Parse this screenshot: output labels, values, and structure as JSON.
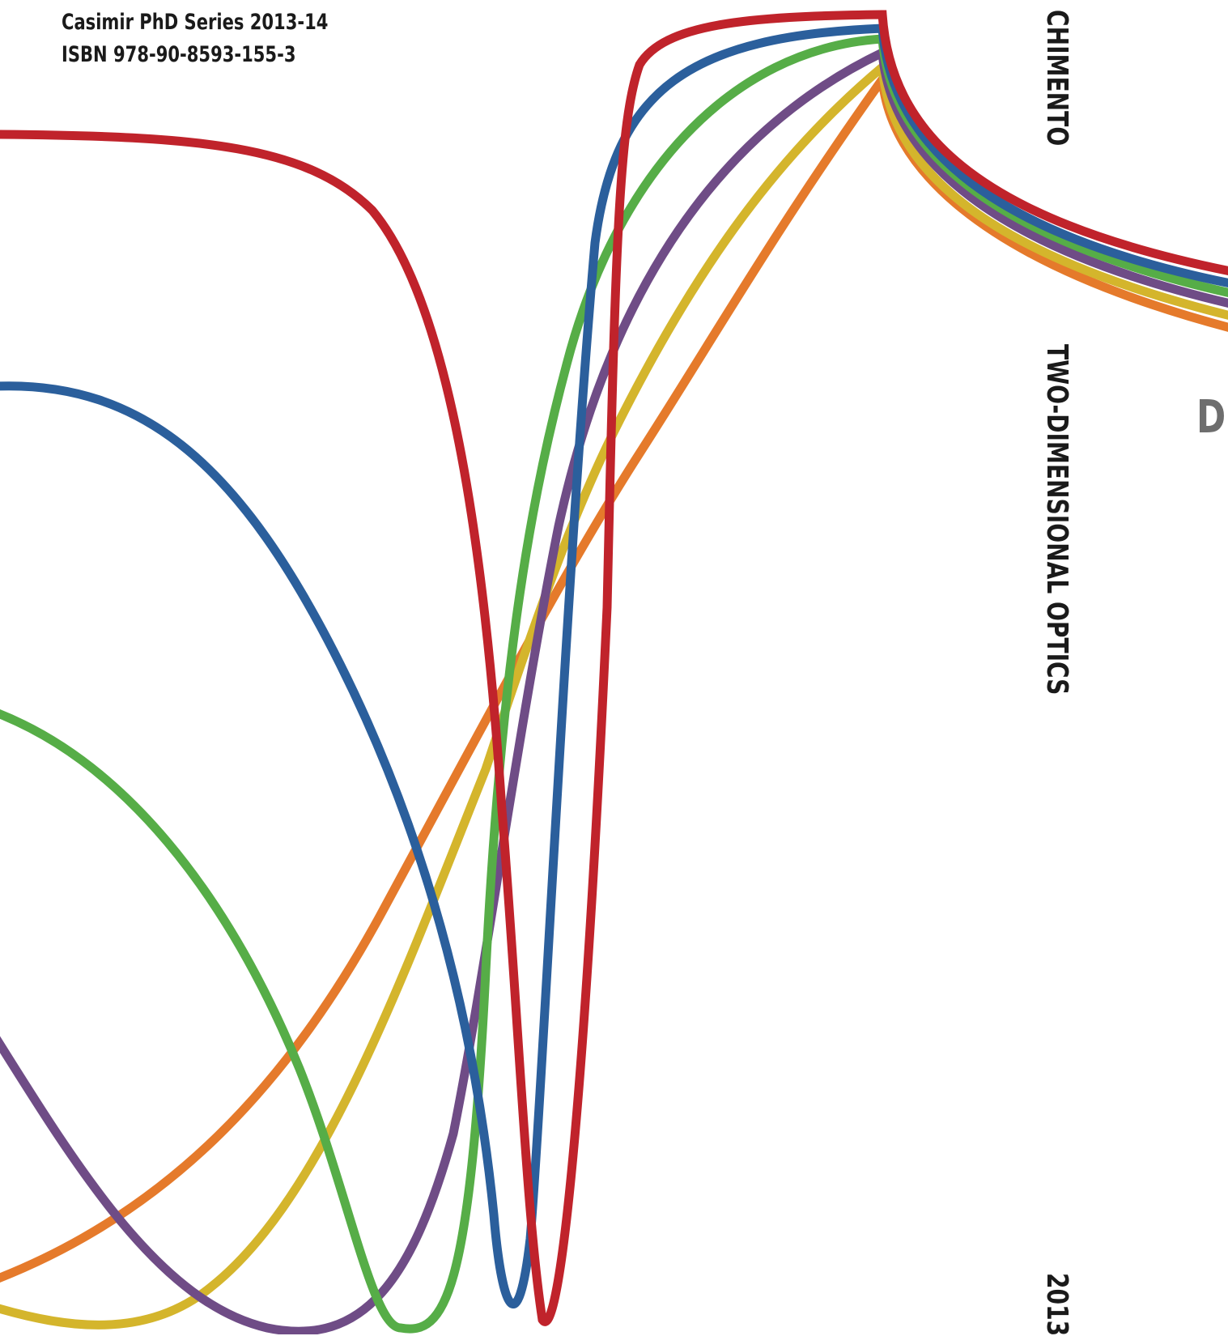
{
  "back_cover": {
    "series_line": "Casimir PhD Series 2013-14",
    "isbn_line": "ISBN 978-90-8593-155-3"
  },
  "spine": {
    "author": "CHIMENTO",
    "title": "TWO-DIMENSIONAL OPTICS",
    "year": "2013"
  },
  "front_cover": {
    "title_fragment": "DI"
  },
  "curve_colors": {
    "red": "#c0232b",
    "blue": "#2b5f9c",
    "green": "#56ad47",
    "purple": "#6f4c86",
    "yellow": "#d4b52c",
    "orange": "#e57a2b"
  }
}
